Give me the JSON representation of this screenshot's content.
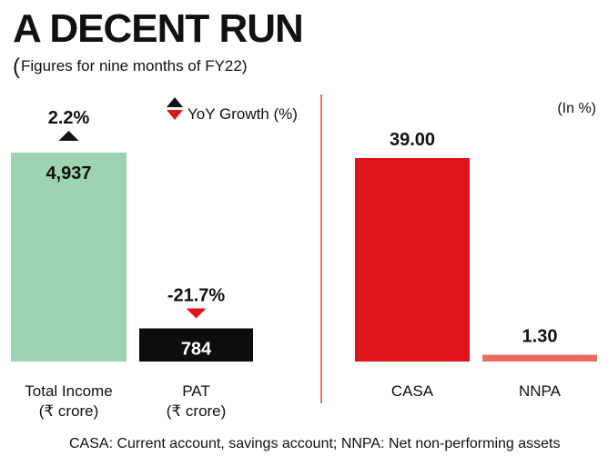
{
  "title": "A DECENT RUN",
  "subtitle": "Figures for nine months of FY22)",
  "subtitle_open_paren": "(",
  "footnote": "CASA: Current account, savings account; NNPA: Net non-performing assets",
  "colors": {
    "total_income": "#9dd3b0",
    "pat": "#0d0d0d",
    "casa": "#e0141b",
    "nnpa": "#ec6b5e",
    "divider": "#d94040",
    "up_arrow": "#111111",
    "down_arrow": "#e0141b"
  },
  "chart_data": [
    {
      "type": "bar",
      "legend_label": "YoY Growth (%)",
      "categories": [
        {
          "name": "Total Income",
          "unit": "(₹ crore)",
          "value": 4937,
          "value_label": "4,937",
          "growth": 2.2,
          "growth_label": "2.2%",
          "growth_direction": "up"
        },
        {
          "name": "PAT",
          "unit": "(₹ crore)",
          "value": 784,
          "value_label": "784",
          "growth": -21.7,
          "growth_label": "-21.7%",
          "growth_direction": "down"
        }
      ],
      "ylim": [
        0,
        4937
      ]
    },
    {
      "type": "bar",
      "unit_label": "(In %)",
      "categories": [
        {
          "name": "CASA",
          "value": 39.0,
          "value_label": "39.00"
        },
        {
          "name": "NNPA",
          "value": 1.3,
          "value_label": "1.30"
        }
      ],
      "ylim": [
        0,
        39.0
      ]
    }
  ]
}
